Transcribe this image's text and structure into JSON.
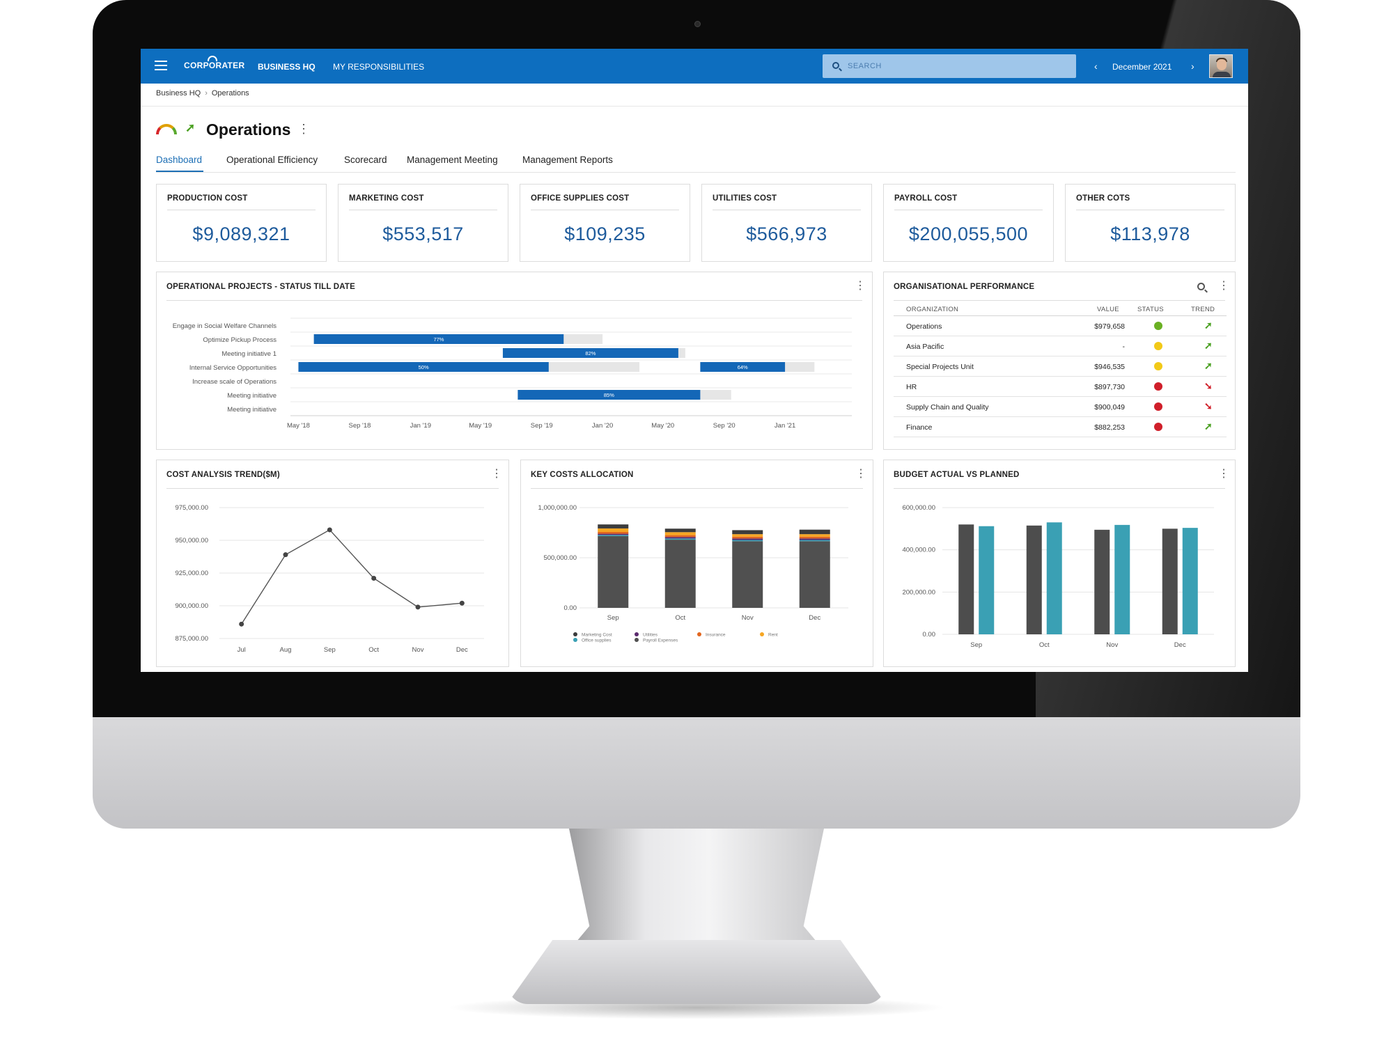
{
  "topbar": {
    "logo": "CORPORATER",
    "nav": [
      "BUSINESS HQ",
      "MY RESPONSIBILITIES"
    ],
    "search_placeholder": "SEARCH",
    "date": "December 2021",
    "prev_icon": "chevron-left-icon",
    "next_icon": "chevron-right-icon"
  },
  "breadcrumb": [
    "Business HQ",
    "Operations"
  ],
  "page": {
    "title": "Operations"
  },
  "tabs": [
    "Dashboard",
    "Operational Efficiency",
    "Scorecard",
    "Management Meeting",
    "Management Reports"
  ],
  "kpis": [
    {
      "label": "PRODUCTION COST",
      "value": "$9,089,321"
    },
    {
      "label": "MARKETING COST",
      "value": "$553,517"
    },
    {
      "label": "OFFICE SUPPLIES COST",
      "value": "$109,235"
    },
    {
      "label": "UTILITIES COST",
      "value": "$566,973"
    },
    {
      "label": "PAYROLL COST",
      "value": "$200,055,500"
    },
    {
      "label": "OTHER COTS",
      "value": "$113,978"
    }
  ],
  "panels": {
    "projects": "OPERATIONAL PROJECTS - STATUS TILL DATE",
    "org": "ORGANISATIONAL PERFORMANCE",
    "trend": "COST ANALYSIS TREND($M)",
    "costs": "KEY COSTS ALLOCATION",
    "budget": "BUDGET ACTUAL VS PLANNED"
  },
  "org_table": {
    "headers": [
      "ORGANIZATION",
      "VALUE",
      "STATUS",
      "TREND"
    ],
    "rows": [
      {
        "name": "Operations",
        "value": "$979,658",
        "status": "#6ab023",
        "trend": "up"
      },
      {
        "name": "Asia Pacific",
        "value": "-",
        "status": "#f2c918",
        "trend": "up"
      },
      {
        "name": "Special Projects Unit",
        "value": "$946,535",
        "status": "#f2c918",
        "trend": "up"
      },
      {
        "name": "HR",
        "value": "$897,730",
        "status": "#d01f2a",
        "trend": "down"
      },
      {
        "name": "Supply Chain and Quality",
        "value": "$900,049",
        "status": "#d01f2a",
        "trend": "down"
      },
      {
        "name": "Finance",
        "value": "$882,253",
        "status": "#d01f2a",
        "trend": "up"
      }
    ]
  },
  "chart_data": [
    {
      "type": "gantt",
      "title": "OPERATIONAL PROJECTS - STATUS TILL DATE",
      "categories": [
        "Engage in Social Welfare Channels",
        "Optimize Pickup Process",
        "Meeting initiative 1",
        "Internal Service Opportunities",
        "Increase scale of Operations",
        "Meeting initiative",
        "Meeting initiative"
      ],
      "x_ticks": [
        "May '18",
        "Sep '18",
        "Jan '19",
        "May '19",
        "Sep '19",
        "Jan '20",
        "May '20",
        "Sep '20",
        "Jan '21"
      ],
      "bars": [
        {
          "row": 1,
          "start": "2018-06-01",
          "end": "2019-10-15",
          "plan_end": "2020-01-01",
          "label": "77%"
        },
        {
          "row": 2,
          "start": "2019-06-15",
          "end": "2020-06-01",
          "plan_end": "2020-06-15",
          "label": "82%"
        },
        {
          "row": 3,
          "start": "2018-05-01",
          "end": "2019-09-15",
          "plan_end": "2020-03-15",
          "label": "50%"
        },
        {
          "row": 3,
          "start": "2020-07-15",
          "end": "2021-01-01",
          "plan_end": "2021-03-01",
          "label": "64%"
        },
        {
          "row": 5,
          "start": "2019-07-15",
          "end": "2020-07-15",
          "plan_end": "2020-09-15",
          "label": "85%"
        }
      ]
    },
    {
      "type": "line",
      "title": "COST ANALYSIS TREND($M)",
      "categories": [
        "Jul",
        "Aug",
        "Sep",
        "Oct",
        "Nov",
        "Dec"
      ],
      "values": [
        886000,
        939000,
        958000,
        921000,
        899000,
        902000
      ],
      "ylim": [
        875000,
        975000
      ],
      "y_ticks": [
        "975,000.00",
        "950,000.00",
        "925,000.00",
        "900,000.00",
        "875,000.00"
      ]
    },
    {
      "type": "bar",
      "stacked": true,
      "title": "KEY COSTS ALLOCATION",
      "categories": [
        "Sep",
        "Oct",
        "Nov",
        "Dec"
      ],
      "ylim": [
        0,
        1000000
      ],
      "y_ticks": [
        "1,000,000.00",
        "500,000.00",
        "0.00"
      ],
      "series": [
        {
          "name": "Payroll Expenses",
          "color": "#505050",
          "values": [
            715000,
            680000,
            665000,
            665000
          ]
        },
        {
          "name": "Office supplies",
          "color": "#3aa0b4",
          "values": [
            12000,
            12000,
            12000,
            12000
          ]
        },
        {
          "name": "Utilities",
          "color": "#5b2a6e",
          "values": [
            12000,
            15000,
            15000,
            15000
          ]
        },
        {
          "name": "Insurance",
          "color": "#e2661f",
          "values": [
            18000,
            18000,
            18000,
            18000
          ]
        },
        {
          "name": "Rent",
          "color": "#f6a623",
          "values": [
            35000,
            30000,
            25000,
            25000
          ]
        },
        {
          "name": "Marketing Cost",
          "color": "#3c3c3c",
          "values": [
            40000,
            35000,
            40000,
            45000
          ]
        }
      ],
      "legend": [
        "Marketing Cost",
        "Office supplies",
        "Utilities",
        "Payroll Expenses",
        "Insurance",
        "Rent"
      ]
    },
    {
      "type": "bar",
      "title": "BUDGET ACTUAL VS PLANNED",
      "categories": [
        "Sep",
        "Oct",
        "Nov",
        "Dec"
      ],
      "ylim": [
        0,
        600000
      ],
      "y_ticks": [
        "600,000.00",
        "400,000.00",
        "200,000.00",
        "0.00"
      ],
      "series": [
        {
          "color": "#4d4d4d",
          "values": [
            520000,
            515000,
            495000,
            500000
          ]
        },
        {
          "color": "#3aa0b4",
          "values": [
            512000,
            530000,
            518000,
            504000
          ]
        }
      ]
    }
  ]
}
